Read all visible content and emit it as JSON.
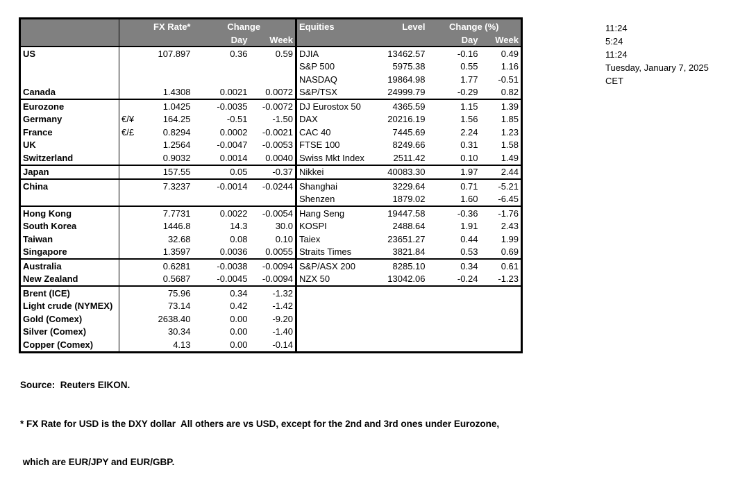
{
  "colors": {
    "header_bg": "#808080",
    "header_text": "#ffffff",
    "border": "#000000",
    "text": "#000000"
  },
  "table": {
    "header": {
      "fx_rate": "FX Rate*",
      "change": "Change",
      "day": "Day",
      "week": "Week",
      "equities": "Equities",
      "level": "Level",
      "change_pct": "Change (%)"
    },
    "rows": [
      {
        "label": "US",
        "sym": "",
        "fx": "107.897",
        "day": "0.36",
        "week": "0.59",
        "eq": "DJIA",
        "level": "13462.57",
        "eq_day": "-0.16",
        "eq_week": "0.49",
        "indent": false,
        "sep": false
      },
      {
        "label": "",
        "sym": "",
        "fx": "",
        "day": "",
        "week": "",
        "eq": "S&P 500",
        "level": "5975.38",
        "eq_day": "0.55",
        "eq_week": "1.16",
        "indent": false,
        "sep": false
      },
      {
        "label": "",
        "sym": "",
        "fx": "",
        "day": "",
        "week": "",
        "eq": "NASDAQ",
        "level": "19864.98",
        "eq_day": "1.77",
        "eq_week": "-0.51",
        "indent": false,
        "sep": false
      },
      {
        "label": "Canada",
        "sym": "",
        "fx": "1.4308",
        "day": "0.0021",
        "week": "0.0072",
        "eq": "S&P/TSX",
        "level": "24999.79",
        "eq_day": "-0.29",
        "eq_week": "0.82",
        "indent": false,
        "sep": true
      },
      {
        "label": "Eurozone",
        "sym": "",
        "fx": "1.0425",
        "day": "-0.0035",
        "week": "-0.0072",
        "eq": "DJ Eurostox 50",
        "level": "4365.59",
        "eq_day": "1.15",
        "eq_week": "1.39",
        "indent": false,
        "sep": false
      },
      {
        "label": "Germany",
        "sym": "€/¥",
        "fx": "164.25",
        "day": "-0.51",
        "week": "-1.50",
        "eq": "DAX",
        "level": "20216.19",
        "eq_day": "1.56",
        "eq_week": "1.85",
        "indent": true,
        "sep": false
      },
      {
        "label": "France",
        "sym": "€/£",
        "fx": "0.8294",
        "day": "0.0002",
        "week": "-0.0021",
        "eq": "CAC 40",
        "level": "7445.69",
        "eq_day": "2.24",
        "eq_week": "1.23",
        "indent": true,
        "sep": false
      },
      {
        "label": "UK",
        "sym": "",
        "fx": "1.2564",
        "day": "-0.0047",
        "week": "-0.0053",
        "eq": "FTSE 100",
        "level": "8249.66",
        "eq_day": "0.31",
        "eq_week": "1.58",
        "indent": false,
        "sep": false
      },
      {
        "label": "Switzerland",
        "sym": "",
        "fx": "0.9032",
        "day": "0.0014",
        "week": "0.0040",
        "eq": "Swiss Mkt Index",
        "level": "2511.42",
        "eq_day": "0.10",
        "eq_week": "1.49",
        "indent": false,
        "sep": true
      },
      {
        "label": "Japan",
        "sym": "",
        "fx": "157.55",
        "day": "0.05",
        "week": "-0.37",
        "eq": "Nikkei",
        "level": "40083.30",
        "eq_day": "1.97",
        "eq_week": "2.44",
        "indent": false,
        "sep": true
      },
      {
        "label": "China",
        "sym": "",
        "fx": "7.3237",
        "day": "-0.0014",
        "week": "-0.0244",
        "eq": "Shanghai",
        "level": "3229.64",
        "eq_day": "0.71",
        "eq_week": "-5.21",
        "indent": false,
        "sep": false
      },
      {
        "label": "",
        "sym": "",
        "fx": "",
        "day": "",
        "week": "",
        "eq": "Shenzen",
        "level": "1879.02",
        "eq_day": "1.60",
        "eq_week": "-6.45",
        "indent": false,
        "sep": true
      },
      {
        "label": "Hong Kong",
        "sym": "",
        "fx": "7.7731",
        "day": "0.0022",
        "week": "-0.0054",
        "eq": "Hang Seng",
        "level": "19447.58",
        "eq_day": "-0.36",
        "eq_week": "-1.76",
        "indent": false,
        "sep": false
      },
      {
        "label": "South Korea",
        "sym": "",
        "fx": "1446.8",
        "day": "14.3",
        "week": "30.0",
        "eq": "KOSPI",
        "level": "2488.64",
        "eq_day": "1.91",
        "eq_week": "2.43",
        "indent": false,
        "sep": false
      },
      {
        "label": "Taiwan",
        "sym": "",
        "fx": "32.68",
        "day": "0.08",
        "week": "0.10",
        "eq": "Taiex",
        "level": "23651.27",
        "eq_day": "0.44",
        "eq_week": "1.99",
        "indent": false,
        "sep": false
      },
      {
        "label": "Singapore",
        "sym": "",
        "fx": "1.3597",
        "day": "0.0036",
        "week": "0.0055",
        "eq": "Straits Times",
        "level": "3821.84",
        "eq_day": "0.53",
        "eq_week": "0.69",
        "indent": false,
        "sep": true
      },
      {
        "label": "Australia",
        "sym": "",
        "fx": "0.6281",
        "day": "-0.0038",
        "week": "-0.0094",
        "eq": "S&P/ASX  200",
        "level": "8285.10",
        "eq_day": "0.34",
        "eq_week": "0.61",
        "indent": false,
        "sep": false
      },
      {
        "label": "New Zealand",
        "sym": "",
        "fx": "0.5687",
        "day": "-0.0045",
        "week": "-0.0094",
        "eq": "NZX 50",
        "level": "13042.06",
        "eq_day": "-0.24",
        "eq_week": "-1.23",
        "indent": false,
        "sep": true
      },
      {
        "label": "Brent (ICE)",
        "sym": "",
        "fx": "75.96",
        "day": "0.34",
        "week": "-1.32",
        "eq": "",
        "level": "",
        "eq_day": "",
        "eq_week": "",
        "indent": false,
        "sep": false
      },
      {
        "label": "Light crude (NYMEX)",
        "sym": "",
        "fx": "73.14",
        "day": "0.42",
        "week": "-1.42",
        "eq": "",
        "level": "",
        "eq_day": "",
        "eq_week": "",
        "indent": false,
        "sep": false
      },
      {
        "label": "Gold (Comex)",
        "sym": "",
        "fx": "2638.40",
        "day": "0.00",
        "week": "-9.20",
        "eq": "",
        "level": "",
        "eq_day": "",
        "eq_week": "",
        "indent": false,
        "sep": false
      },
      {
        "label": "Silver (Comex)",
        "sym": "",
        "fx": "30.34",
        "day": "0.00",
        "week": "-1.40",
        "eq": "",
        "level": "",
        "eq_day": "",
        "eq_week": "",
        "indent": false,
        "sep": false
      },
      {
        "label": "Copper (Comex)",
        "sym": "",
        "fx": "4.13",
        "day": "0.00",
        "week": "-0.14",
        "eq": "",
        "level": "",
        "eq_day": "",
        "eq_week": "",
        "indent": false,
        "sep": false
      }
    ]
  },
  "sidebar": {
    "lines": [
      "11:24",
      "5:24",
      "11:24",
      "Tuesday, January 7, 2025",
      "CET"
    ]
  },
  "footer": {
    "source": "Source:  Reuters EIKON.",
    "note1": "* FX Rate for USD is the DXY dollar  All others are vs USD, except for the 2nd and 3rd ones under Eurozone,",
    "note2": " which are EUR/JPY and EUR/GBP."
  }
}
